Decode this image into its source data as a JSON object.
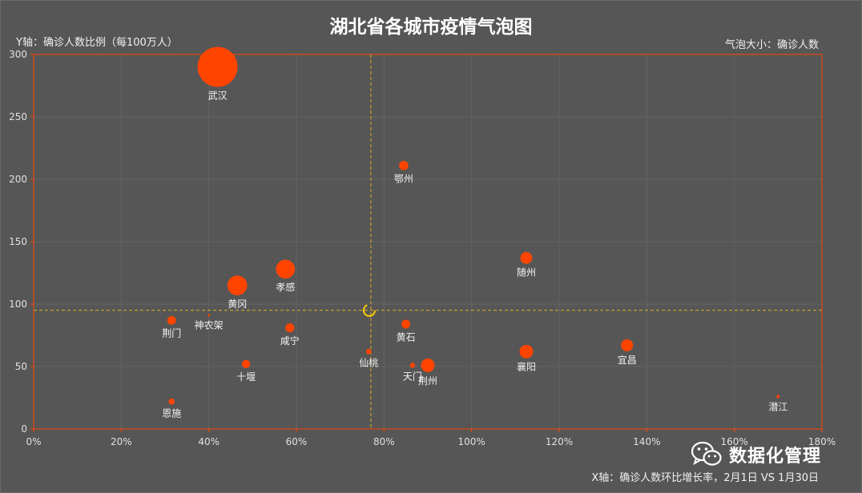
{
  "chart_data": {
    "type": "scatter",
    "title": "湖北省各城市疫情气泡图",
    "ylabel": "Y轴：确诊人数比例（每100万人）",
    "xlabel": "X轴：确诊人数环比增长率，2月1日  VS 1月30日",
    "size_label": "气泡大小：确诊人数",
    "xlim": [
      0,
      180
    ],
    "ylim": [
      0,
      300
    ],
    "x_ticks": [
      "0%",
      "20%",
      "40%",
      "60%",
      "80%",
      "100%",
      "120%",
      "140%",
      "160%",
      "180%"
    ],
    "y_ticks": [
      "0",
      "50",
      "100",
      "150",
      "200",
      "250",
      "300"
    ],
    "grid": true,
    "color": "#ff4400",
    "reference_lines": {
      "x": 77,
      "y": 95
    },
    "points": [
      {
        "name": "武汉",
        "x": 42,
        "y": 290,
        "size": 4109
      },
      {
        "name": "鄂州",
        "x": 84.5,
        "y": 211,
        "size": 222
      },
      {
        "name": "随州",
        "x": 112.5,
        "y": 137,
        "size": 358
      },
      {
        "name": "孝感",
        "x": 57.5,
        "y": 128,
        "size": 918
      },
      {
        "name": "黄冈",
        "x": 46.5,
        "y": 115,
        "size": 1002
      },
      {
        "name": "神农架",
        "x": 40,
        "y": 91,
        "size": 10
      },
      {
        "name": "荆门",
        "x": 31.5,
        "y": 87,
        "size": 191
      },
      {
        "name": "咸宁",
        "x": 58.5,
        "y": 81,
        "size": 206
      },
      {
        "name": "黄石",
        "x": 85,
        "y": 84,
        "size": 198
      },
      {
        "name": "仙桃",
        "x": 76.5,
        "y": 62,
        "size": 74
      },
      {
        "name": "十堰",
        "x": 48.5,
        "y": 52,
        "size": 176
      },
      {
        "name": "天门",
        "x": 86.5,
        "y": 51,
        "size": 67
      },
      {
        "name": "荆州",
        "x": 90,
        "y": 51,
        "size": 475
      },
      {
        "name": "襄阳",
        "x": 112.5,
        "y": 62,
        "size": 471
      },
      {
        "name": "宜昌",
        "x": 135.5,
        "y": 67,
        "size": 373
      },
      {
        "name": "恩施",
        "x": 31.5,
        "y": 22,
        "size": 94
      },
      {
        "name": "潜江",
        "x": 170,
        "y": 26,
        "size": 25
      }
    ]
  },
  "watermark": {
    "text": "数据化管理",
    "icon": "wechat-icon"
  }
}
